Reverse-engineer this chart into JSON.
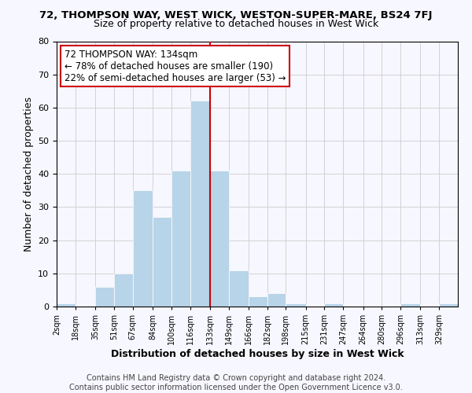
{
  "title1": "72, THOMPSON WAY, WEST WICK, WESTON-SUPER-MARE, BS24 7FJ",
  "title2": "Size of property relative to detached houses in West Wick",
  "xlabel": "Distribution of detached houses by size in West Wick",
  "ylabel": "Number of detached properties",
  "bin_edges": [
    2,
    18,
    35,
    51,
    67,
    84,
    100,
    116,
    133,
    149,
    166,
    182,
    198,
    215,
    231,
    247,
    264,
    280,
    296,
    313,
    329,
    345
  ],
  "bar_heights": [
    1,
    0,
    6,
    10,
    35,
    27,
    41,
    62,
    41,
    11,
    3,
    4,
    1,
    0,
    1,
    0,
    0,
    0,
    1,
    0,
    1
  ],
  "bar_color": "#b8d4e8",
  "bar_edgecolor": "white",
  "vline_x": 133,
  "vline_color": "#cc0000",
  "annotation_text": "72 THOMPSON WAY: 134sqm\n← 78% of detached houses are smaller (190)\n22% of semi-detached houses are larger (53) →",
  "ylim": [
    0,
    80
  ],
  "yticks": [
    0,
    10,
    20,
    30,
    40,
    50,
    60,
    70,
    80
  ],
  "tick_labels": [
    "2sqm",
    "18sqm",
    "35sqm",
    "51sqm",
    "67sqm",
    "84sqm",
    "100sqm",
    "116sqm",
    "133sqm",
    "149sqm",
    "166sqm",
    "182sqm",
    "198sqm",
    "215sqm",
    "231sqm",
    "247sqm",
    "264sqm",
    "280sqm",
    "296sqm",
    "313sqm",
    "329sqm"
  ],
  "grid_color": "#cccccc",
  "background_color": "#f7f7ff",
  "footer_text": "Contains HM Land Registry data © Crown copyright and database right 2024.\nContains public sector information licensed under the Open Government Licence v3.0.",
  "title1_fontsize": 9.5,
  "title2_fontsize": 9,
  "annotation_fontsize": 8.5,
  "footer_fontsize": 7,
  "xlabel_fontsize": 9,
  "ylabel_fontsize": 9,
  "tick_fontsize": 7,
  "ytick_fontsize": 8
}
